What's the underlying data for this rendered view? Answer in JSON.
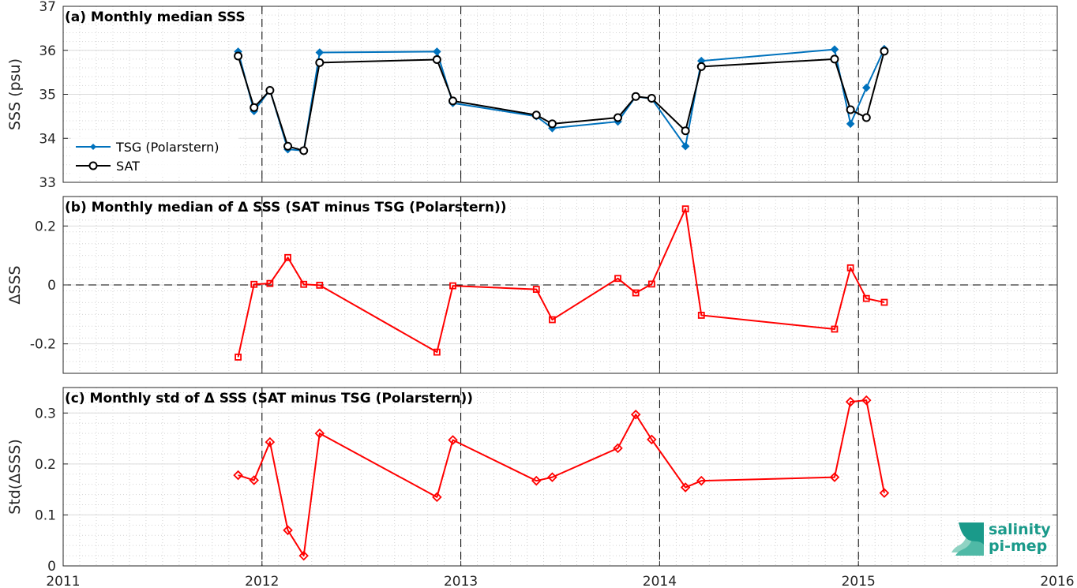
{
  "colors": {
    "tsg": "#0072bd",
    "sat": "#000000",
    "delta": "#ff0000",
    "logo": "#1a9a8a"
  },
  "logo": {
    "line1": "salinity",
    "line2": "pi-mep"
  },
  "x_ticks": [
    "2011",
    "2012",
    "2013",
    "2014",
    "2015",
    "2016"
  ],
  "chart_data": [
    {
      "type": "line",
      "panel": "a",
      "title": "(a) Monthly median SSS",
      "ylabel": "SSS (psu)",
      "xlim": [
        2011,
        2016
      ],
      "ylim": [
        33,
        37
      ],
      "yticks": [
        33,
        34,
        35,
        36,
        37
      ],
      "ytick_labels": [
        "33",
        "34",
        "35",
        "36",
        "37"
      ],
      "legend_position": "left-bottom",
      "x": [
        2011.88,
        2011.96,
        2012.04,
        2012.13,
        2012.21,
        2012.29,
        2012.88,
        2012.96,
        2013.38,
        2013.46,
        2013.79,
        2013.88,
        2013.96,
        2014.13,
        2014.21,
        2014.88,
        2014.96,
        2015.04,
        2015.13
      ],
      "series": [
        {
          "name": "TSG (Polarstern)",
          "marker": "diamond",
          "color_key": "tsg",
          "values": [
            35.97,
            34.62,
            35.1,
            33.75,
            33.72,
            35.95,
            35.97,
            34.8,
            34.5,
            34.23,
            34.38,
            34.95,
            34.9,
            33.82,
            35.76,
            36.02,
            34.33,
            35.15,
            36.03
          ]
        },
        {
          "name": "SAT",
          "marker": "circle",
          "color_key": "sat",
          "values": [
            35.87,
            34.7,
            35.09,
            33.82,
            33.72,
            35.72,
            35.79,
            34.85,
            34.53,
            34.33,
            34.47,
            34.95,
            34.91,
            34.17,
            35.63,
            35.8,
            34.65,
            34.47,
            35.98
          ]
        }
      ]
    },
    {
      "type": "line",
      "panel": "b",
      "title": "(b) Monthly median of Δ SSS (SAT minus TSG (Polarstern))",
      "ylabel": "ΔSSS",
      "xlim": [
        2011,
        2016
      ],
      "ylim": [
        -0.3,
        0.3
      ],
      "yticks": [
        -0.2,
        0,
        0.2
      ],
      "ytick_labels": [
        "-0.2",
        "0",
        "0.2"
      ],
      "zero_line": true,
      "x": [
        2011.88,
        2011.96,
        2012.04,
        2012.13,
        2012.21,
        2012.29,
        2012.88,
        2012.96,
        2013.38,
        2013.46,
        2013.79,
        2013.88,
        2013.96,
        2014.13,
        2014.21,
        2014.88,
        2014.96,
        2015.04,
        2015.13
      ],
      "series": [
        {
          "marker": "square",
          "color_key": "delta",
          "values": [
            -0.245,
            0.002,
            0.005,
            0.093,
            0.002,
            -0.001,
            -0.228,
            -0.003,
            -0.015,
            -0.118,
            0.022,
            -0.027,
            0.003,
            0.258,
            -0.103,
            -0.15,
            0.058,
            -0.046,
            -0.059
          ]
        }
      ]
    },
    {
      "type": "line",
      "panel": "c",
      "title": "(c) Monthly std of Δ SSS (SAT minus TSG (Polarstern))",
      "ylabel": "Std(ΔSSS)",
      "xlim": [
        2011,
        2016
      ],
      "ylim": [
        0,
        0.35
      ],
      "yticks": [
        0,
        0.1,
        0.2,
        0.3
      ],
      "ytick_labels": [
        "0",
        "0.1",
        "0.2",
        "0.3"
      ],
      "x": [
        2011.88,
        2011.96,
        2012.04,
        2012.13,
        2012.21,
        2012.29,
        2012.88,
        2012.96,
        2013.38,
        2013.46,
        2013.79,
        2013.88,
        2013.96,
        2014.13,
        2014.21,
        2014.88,
        2014.96,
        2015.04,
        2015.13
      ],
      "series": [
        {
          "marker": "diamond",
          "color_key": "delta",
          "values": [
            0.178,
            0.168,
            0.243,
            0.07,
            0.02,
            0.26,
            0.135,
            0.247,
            0.167,
            0.174,
            0.231,
            0.297,
            0.248,
            0.154,
            0.167,
            0.174,
            0.322,
            0.325,
            0.143
          ]
        }
      ]
    }
  ]
}
